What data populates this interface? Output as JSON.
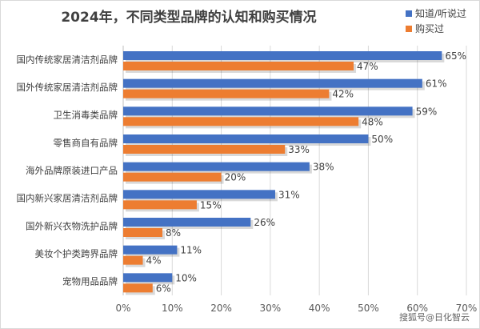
{
  "chart_data": {
    "type": "bar",
    "orientation": "horizontal",
    "title": "2024年，不同类型品牌的认知和购买情况",
    "categories": [
      "国内传统家居清洁剂品牌",
      "国外传统家居清洁剂品牌",
      "卫生消毒类品牌",
      "零售商自有品牌",
      "海外品牌原装进口产品",
      "国内新兴家居清洁剂品牌",
      "国外新兴衣物洗护品牌",
      "美妆个护类跨界品牌",
      "宠物用品品牌"
    ],
    "series": [
      {
        "name": "知道/听说过",
        "values": [
          65,
          61,
          59,
          50,
          38,
          31,
          26,
          11,
          10
        ],
        "labels": [
          "65%",
          "61%",
          "59%",
          "50%",
          "38%",
          "31%",
          "26%",
          "11%",
          "10%"
        ],
        "color": "#4472c4"
      },
      {
        "name": "购买过",
        "values": [
          47,
          42,
          48,
          33,
          20,
          15,
          8,
          4,
          6
        ],
        "labels": [
          "47%",
          "42%",
          "48%",
          "33%",
          "20%",
          "15%",
          "8%",
          "4%",
          "6%"
        ],
        "color": "#ed7d31"
      }
    ],
    "xlim": [
      0,
      70
    ],
    "xticks": [
      "0%",
      "10%",
      "20%",
      "30%",
      "40%",
      "50%",
      "60%",
      "70%"
    ],
    "grid": true,
    "legend": "top-right"
  },
  "watermark": "搜狐号@日化智云"
}
